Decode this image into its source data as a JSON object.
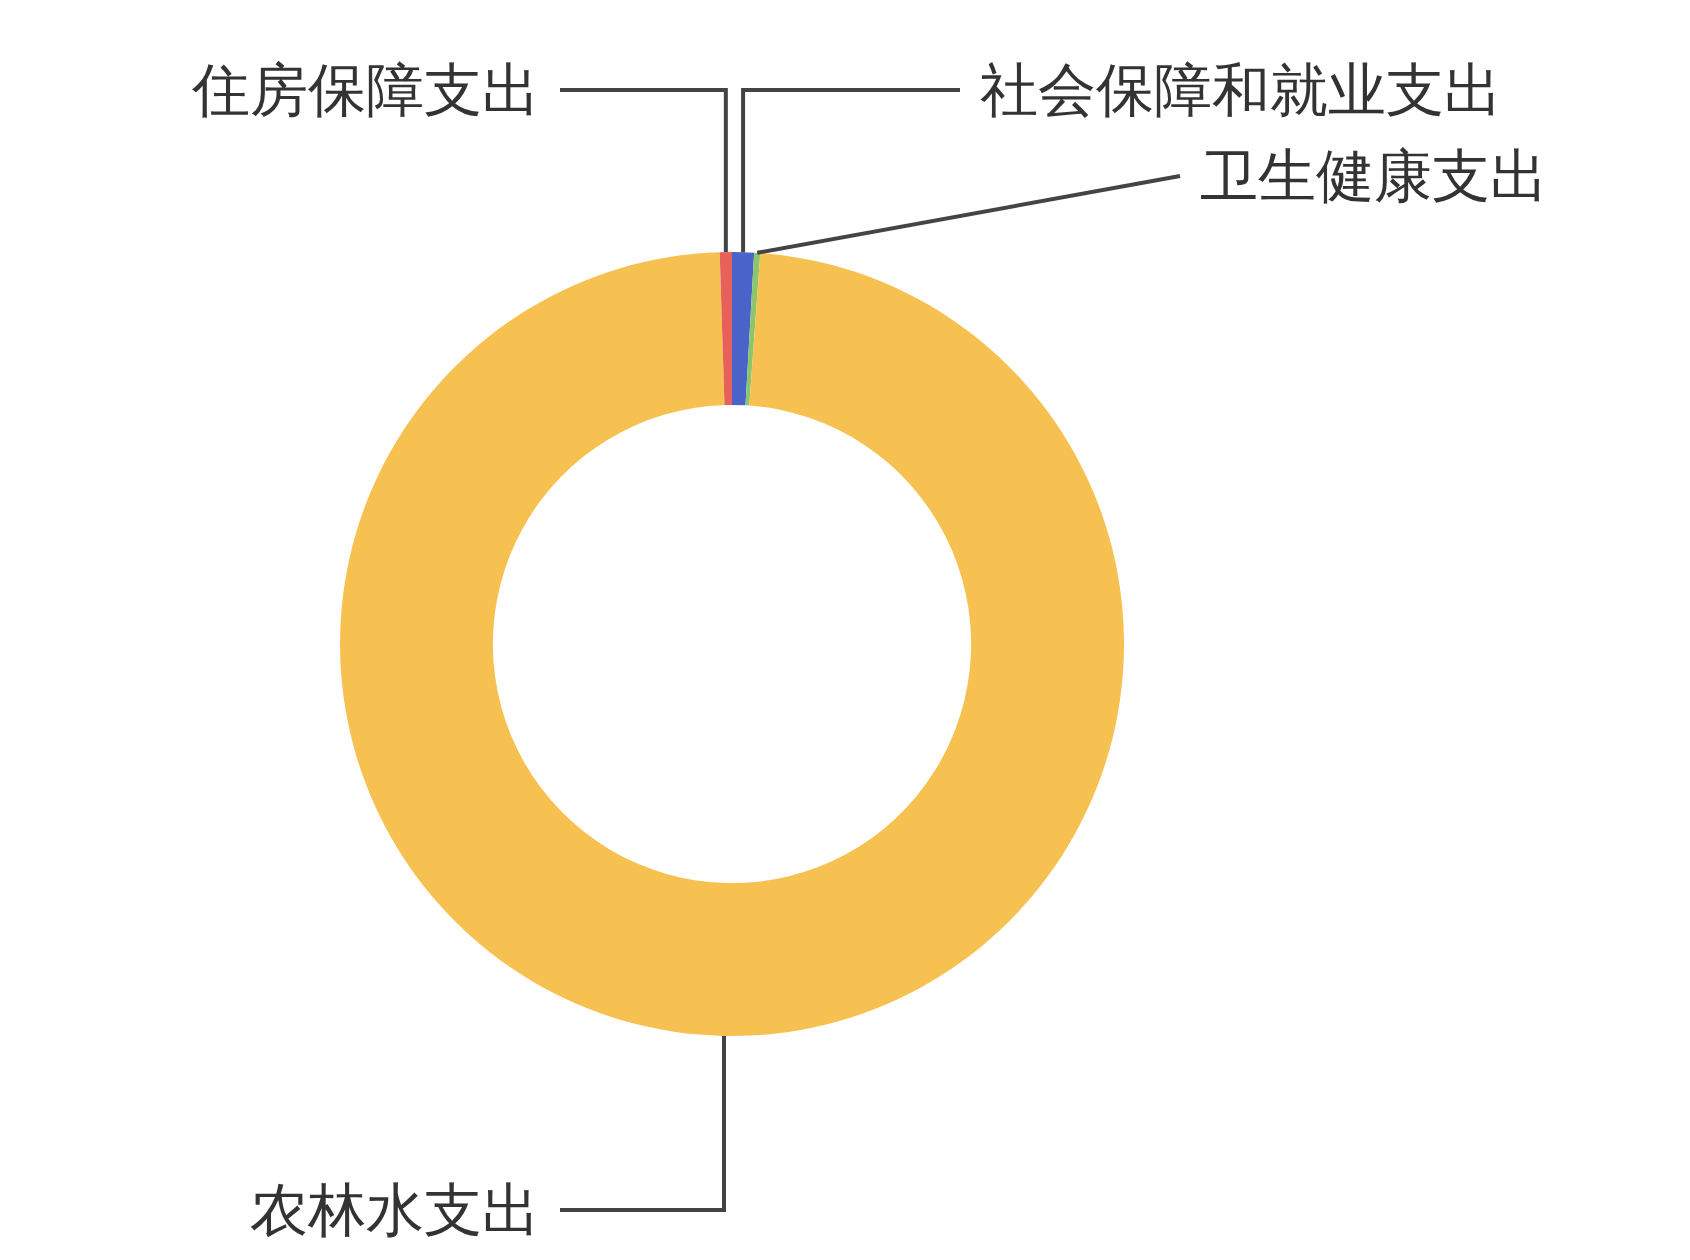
{
  "chart_data": {
    "type": "donut",
    "categories": [
      "社会保障和就业支出",
      "卫生健康支出",
      "农林水支出",
      "住房保障支出"
    ],
    "values": [
      0.9,
      0.25,
      98.35,
      0.5
    ],
    "colors": [
      "#4a63c8",
      "#8cc56a",
      "#f6c150",
      "#e8605a"
    ],
    "legend": false
  }
}
